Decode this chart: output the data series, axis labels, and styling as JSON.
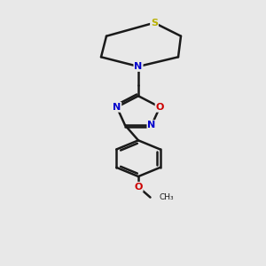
{
  "background_color": "#e8e8e8",
  "bond_color": "#1a1a1a",
  "S_color": "#b8b000",
  "N_color": "#0000cc",
  "O_color": "#cc0000",
  "lw": 1.8,
  "xlim": [
    0,
    10
  ],
  "ylim": [
    0,
    14
  ]
}
